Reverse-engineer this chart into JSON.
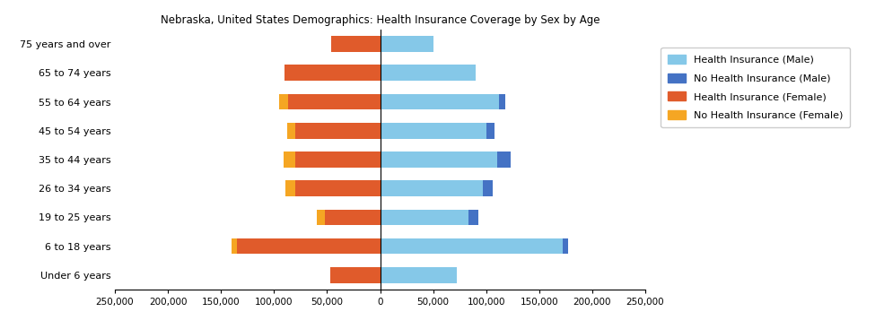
{
  "title": "Nebraska, United States Demographics: Health Insurance Coverage by Sex by Age",
  "age_groups": [
    "Under 6 years",
    "6 to 18 years",
    "19 to 25 years",
    "26 to 34 years",
    "35 to 44 years",
    "45 to 54 years",
    "55 to 64 years",
    "65 to 74 years",
    "75 years and over"
  ],
  "health_ins_male": [
    72000,
    172000,
    83000,
    97000,
    110000,
    100000,
    112000,
    90000,
    50000
  ],
  "no_health_ins_male": [
    0,
    5000,
    10000,
    9000,
    13000,
    8000,
    6000,
    0,
    0
  ],
  "health_ins_female": [
    47000,
    135000,
    52000,
    80000,
    80000,
    80000,
    87000,
    90000,
    46000
  ],
  "no_health_ins_female": [
    0,
    5000,
    8000,
    9000,
    11000,
    8000,
    8000,
    0,
    0
  ],
  "color_health_ins_male": "#85C8E8",
  "color_no_health_ins_male": "#4472C4",
  "color_health_ins_female": "#E05B2B",
  "color_no_health_ins_female": "#F5A623",
  "xlim": 250000,
  "xticks": [
    -250000,
    -200000,
    -150000,
    -100000,
    -50000,
    0,
    50000,
    100000,
    150000,
    200000,
    250000
  ],
  "xticklabels": [
    "250,000",
    "200,000",
    "150,000",
    "100,000",
    "50,000",
    "0",
    "50,000",
    "100,000",
    "150,000",
    "200,000",
    "250,000"
  ],
  "legend_labels": [
    "Health Insurance (Male)",
    "No Health Insurance (Male)",
    "Health Insurance (Female)",
    "No Health Insurance (Female)"
  ],
  "legend_colors": [
    "#85C8E8",
    "#4472C4",
    "#E05B2B",
    "#F5A623"
  ]
}
